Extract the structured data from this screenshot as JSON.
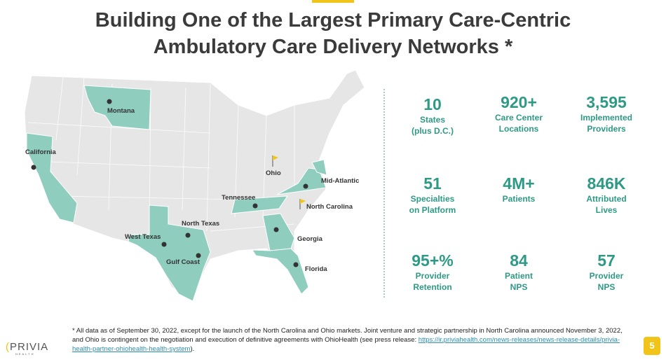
{
  "title_line1": "Building One of the Largest Primary Care-Centric",
  "title_line2": "Ambulatory Care Delivery Networks *",
  "map": {
    "labels": [
      "Montana",
      "California",
      "Ohio",
      "Mid-Atlantic",
      "Tennessee",
      "North Carolina",
      "North Texas",
      "West Texas",
      "Gulf Coast",
      "Georgia",
      "Florida"
    ]
  },
  "stats": [
    {
      "value": "10",
      "label1": "States",
      "label2": "(plus D.C.)"
    },
    {
      "value": "920+",
      "label1": "Care Center",
      "label2": "Locations"
    },
    {
      "value": "3,595",
      "label1": "Implemented",
      "label2": "Providers"
    },
    {
      "value": "51",
      "label1": "Specialties",
      "label2": "on Platform"
    },
    {
      "value": "4M+",
      "label1": "Patients",
      "label2": ""
    },
    {
      "value": "846K",
      "label1": "Attributed",
      "label2": "Lives"
    },
    {
      "value": "95+%",
      "label1": "Provider",
      "label2": "Retention"
    },
    {
      "value": "84",
      "label1": "Patient",
      "label2": "NPS"
    },
    {
      "value": "57",
      "label1": "Provider",
      "label2": "NPS"
    }
  ],
  "footnote": {
    "text": "* All data as of September 30, 2022, except for the launch of the North Carolina and Ohio markets. Joint venture and strategic partnership in North Carolina announced November 3, 2022, and Ohio is contingent on the negotiation and execution of definitive agreements with OhioHealth (see press release: ",
    "link": "https://ir.priviahealth.com/news-releases/news-release-details/privia-health-partner-ohiohealth-health-system",
    "end": ")."
  },
  "logo": {
    "name": "PRIVIA",
    "sub": "HEALTH"
  },
  "page_number": "5",
  "colors": {
    "teal": "#2e9a85",
    "yellow": "#f0c419",
    "map_gray": "#e6e6e6"
  }
}
